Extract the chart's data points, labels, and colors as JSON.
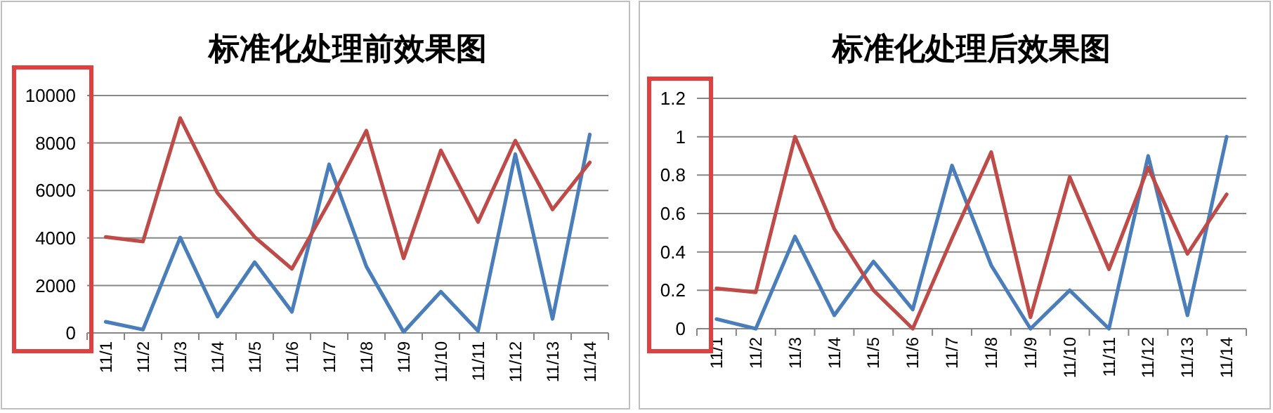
{
  "chart_data": [
    {
      "type": "line",
      "title": "标准化处理前效果图",
      "categories": [
        "11/1",
        "11/2",
        "11/3",
        "11/4",
        "11/5",
        "11/6",
        "11/7",
        "11/8",
        "11/9",
        "11/10",
        "11/11",
        "11/12",
        "11/13",
        "11/14"
      ],
      "series": [
        {
          "color": "#4a7ebb",
          "values": [
            470,
            140,
            4020,
            690,
            2980,
            890,
            7100,
            2800,
            40,
            1740,
            80,
            7530,
            590,
            8360
          ]
        },
        {
          "color": "#be4b48",
          "values": [
            4040,
            3850,
            9050,
            5900,
            4040,
            2700,
            5500,
            8520,
            3140,
            7690,
            4670,
            8100,
            5200,
            7180
          ]
        }
      ],
      "ylim": [
        0,
        10000
      ],
      "yticks": [
        0,
        2000,
        4000,
        6000,
        8000,
        10000
      ],
      "grid": "y",
      "marker": "none",
      "line_style": "solid"
    },
    {
      "type": "line",
      "title": "标准化处理后效果图",
      "categories": [
        "11/1",
        "11/2",
        "11/3",
        "11/4",
        "11/5",
        "11/6",
        "11/7",
        "11/8",
        "11/9",
        "11/10",
        "11/11",
        "11/12",
        "11/13",
        "11/14"
      ],
      "series": [
        {
          "color": "#4a7ebb",
          "values": [
            0.05,
            0,
            0.48,
            0.07,
            0.35,
            0.1,
            0.85,
            0.33,
            0,
            0.2,
            0,
            0.9,
            0.07,
            1
          ]
        },
        {
          "color": "#be4b48",
          "values": [
            0.21,
            0.19,
            1,
            0.52,
            0.2,
            0,
            0.47,
            0.92,
            0.06,
            0.79,
            0.31,
            0.84,
            0.39,
            0.7
          ]
        }
      ],
      "ylim": [
        0,
        1.2
      ],
      "yticks": [
        0,
        0.2,
        0.4,
        0.6,
        0.8,
        1,
        1.2
      ],
      "grid": "y",
      "marker": "none",
      "line_style": "solid"
    }
  ]
}
